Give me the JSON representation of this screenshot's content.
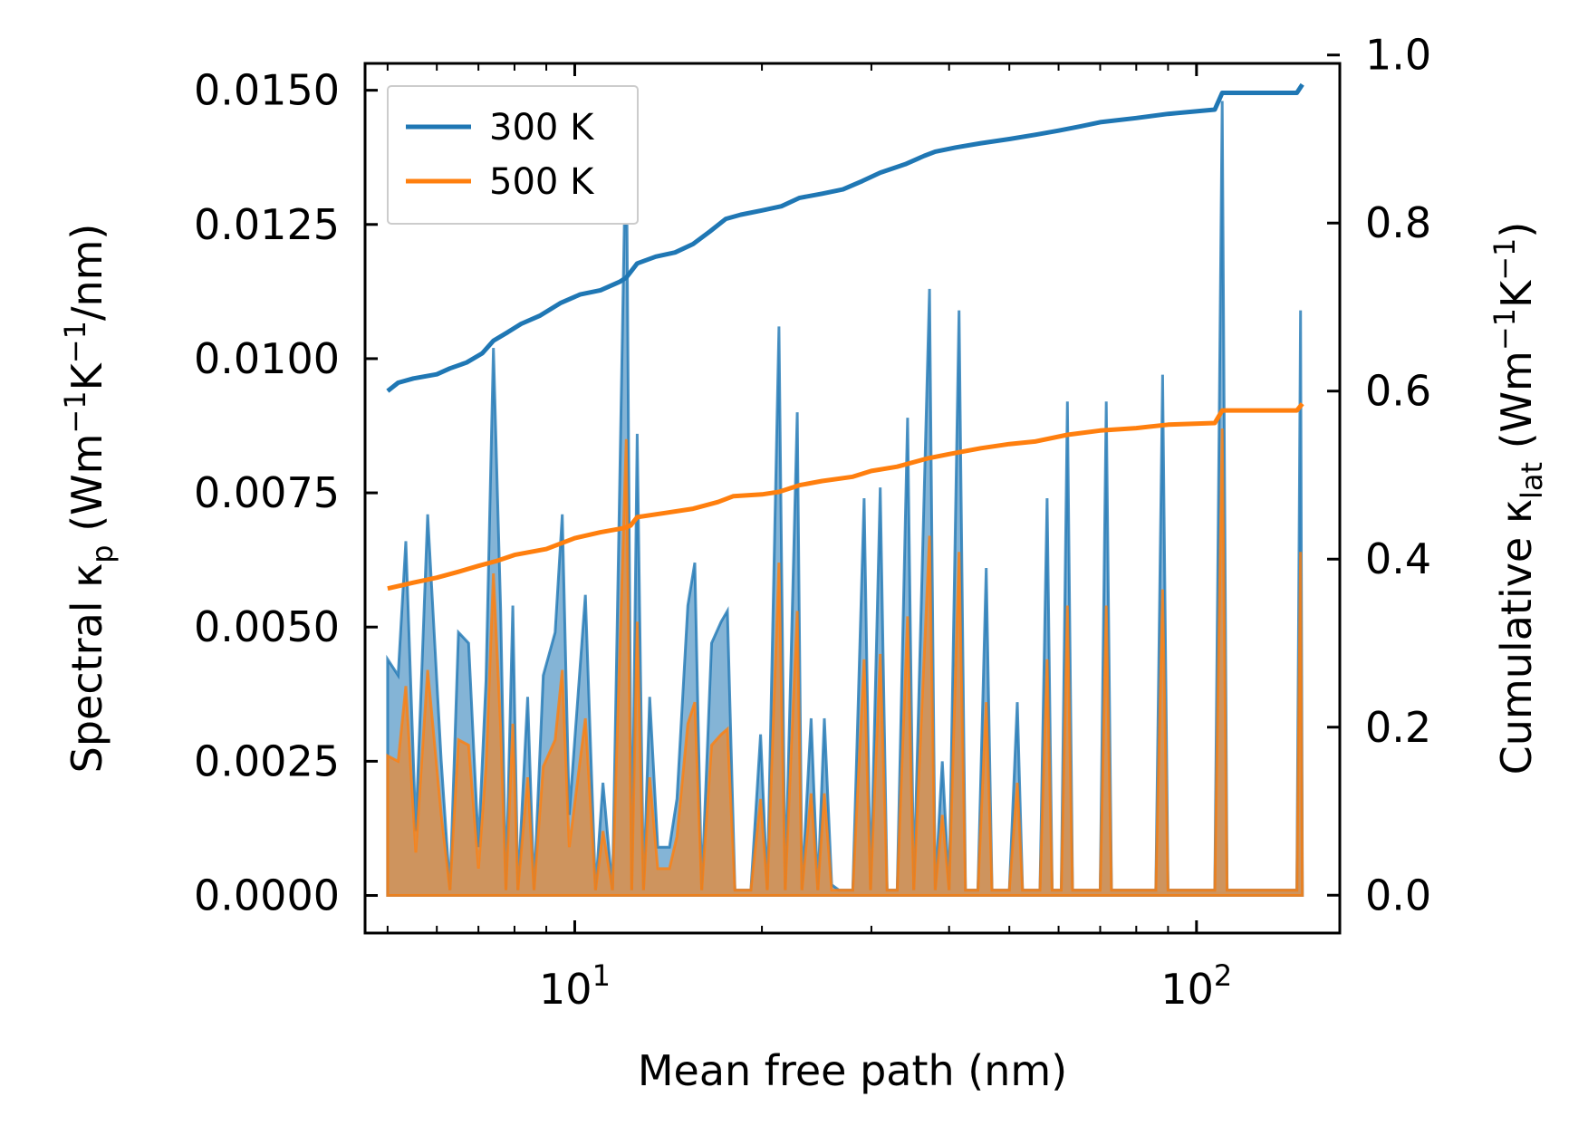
{
  "chart_data": {
    "type": "area",
    "xscale": "log",
    "xlabel": "Mean free path (nm)",
    "ylabel_left": {
      "base": "Spectral κ",
      "sub": "p",
      "unit_open": " (Wm",
      "sup1": "−1",
      "mid": "K",
      "sup2": "−1",
      "unit_close": "/nm)"
    },
    "ylabel_right": {
      "base": "Cumulative κ",
      "sub": "lat",
      "unit_open": " (Wm",
      "sup1": "−1",
      "mid": "K",
      "sup2": "−1",
      "unit_close": ")"
    },
    "xlim": [
      4.6,
      170
    ],
    "ylim_left": [
      -0.0007,
      0.0155
    ],
    "ylim_right": [
      -0.045,
      0.99
    ],
    "x_ticks": [
      {
        "value": 10,
        "base": "10",
        "exp": "1"
      },
      {
        "value": 100,
        "base": "10",
        "exp": "2"
      }
    ],
    "y_ticks_left": [
      "0.0000",
      "0.0025",
      "0.0050",
      "0.0075",
      "0.0100",
      "0.0125",
      "0.0150"
    ],
    "y_ticks_left_values": [
      0,
      0.0025,
      0.005,
      0.0075,
      0.01,
      0.0125,
      0.015
    ],
    "y_ticks_right": [
      "0.0",
      "0.2",
      "0.4",
      "0.6",
      "0.8",
      "1.0"
    ],
    "y_ticks_right_values": [
      0,
      0.2,
      0.4,
      0.6,
      0.8,
      1.0
    ],
    "legend": {
      "position": "top-left",
      "entries": [
        "300 K",
        "500 K"
      ]
    },
    "series": [
      {
        "name": "300 K",
        "color": "#1f77b4",
        "spectral": [
          [
            5,
            0.0044
          ],
          [
            5.2,
            0.0041
          ],
          [
            5.35,
            0.0066
          ],
          [
            5.55,
            0.0012
          ],
          [
            5.8,
            0.0071
          ],
          [
            6.1,
            0.0025
          ],
          [
            6.3,
            0.0001
          ],
          [
            6.5,
            0.0049
          ],
          [
            6.75,
            0.0047
          ],
          [
            7.0,
            0.0009
          ],
          [
            7.2,
            0.004
          ],
          [
            7.4,
            0.0102
          ],
          [
            7.6,
            0.0053
          ],
          [
            7.75,
            0.0001
          ],
          [
            7.95,
            0.0054
          ],
          [
            8.1,
            0.0001
          ],
          [
            8.4,
            0.0037
          ],
          [
            8.6,
            0.0001
          ],
          [
            8.9,
            0.0041
          ],
          [
            9.3,
            0.0049
          ],
          [
            9.55,
            0.0071
          ],
          [
            9.8,
            0.0015
          ],
          [
            10.4,
            0.0056
          ],
          [
            10.8,
            0.0001
          ],
          [
            11.1,
            0.0021
          ],
          [
            11.5,
            0.0001
          ],
          [
            12.1,
            0.0145
          ],
          [
            12.35,
            0.0001
          ],
          [
            12.6,
            0.0086
          ],
          [
            12.9,
            0.0001
          ],
          [
            13.2,
            0.0037
          ],
          [
            13.6,
            0.0009
          ],
          [
            14.2,
            0.0009
          ],
          [
            14.6,
            0.0018
          ],
          [
            15.2,
            0.0054
          ],
          [
            15.6,
            0.0062
          ],
          [
            16.0,
            0.0001
          ],
          [
            16.6,
            0.0047
          ],
          [
            17.2,
            0.0051
          ],
          [
            17.6,
            0.0053
          ],
          [
            18.1,
            0.0001
          ],
          [
            19.2,
            0.0001
          ],
          [
            19.9,
            0.003
          ],
          [
            20.4,
            0.0001
          ],
          [
            21.3,
            0.0106
          ],
          [
            21.8,
            0.0001
          ],
          [
            22.8,
            0.009
          ],
          [
            23.2,
            0.0001
          ],
          [
            24.0,
            0.0033
          ],
          [
            24.6,
            0.0001
          ],
          [
            25.2,
            0.0033
          ],
          [
            25.9,
            0.0002
          ],
          [
            26.6,
            0.0001
          ],
          [
            28.0,
            0.0001
          ],
          [
            29.2,
            0.0074
          ],
          [
            29.9,
            0.0001
          ],
          [
            31.0,
            0.0076
          ],
          [
            31.8,
            0.0001
          ],
          [
            33.0,
            0.0001
          ],
          [
            34.3,
            0.0089
          ],
          [
            35.1,
            0.0001
          ],
          [
            37.2,
            0.0113
          ],
          [
            38.0,
            0.0001
          ],
          [
            39.0,
            0.0025
          ],
          [
            40.0,
            0.0001
          ],
          [
            41.5,
            0.0109
          ],
          [
            42.5,
            0.0001
          ],
          [
            44.5,
            0.0001
          ],
          [
            45.9,
            0.0061
          ],
          [
            46.9,
            0.0001
          ],
          [
            50.0,
            0.0001
          ],
          [
            51.5,
            0.0036
          ],
          [
            52.5,
            0.0001
          ],
          [
            56.0,
            0.0001
          ],
          [
            57.5,
            0.0074
          ],
          [
            58.6,
            0.0001
          ],
          [
            60.6,
            0.0001
          ],
          [
            62.0,
            0.0092
          ],
          [
            63.2,
            0.0001
          ],
          [
            70.0,
            0.0001
          ],
          [
            71.6,
            0.0092
          ],
          [
            73.0,
            0.0001
          ],
          [
            86.0,
            0.0001
          ],
          [
            88.2,
            0.0097
          ],
          [
            90.0,
            0.0001
          ],
          [
            107.0,
            0.0001
          ],
          [
            110.0,
            0.0148
          ],
          [
            112.0,
            0.0001
          ],
          [
            145.0,
            0.0001
          ],
          [
            147.0,
            0.0109
          ],
          [
            148.0,
            0.0001
          ]
        ],
        "cumulative": [
          [
            5,
            0.6
          ],
          [
            5.2,
            0.61
          ],
          [
            5.5,
            0.615
          ],
          [
            6,
            0.62
          ],
          [
            6.3,
            0.627
          ],
          [
            6.7,
            0.634
          ],
          [
            7.1,
            0.645
          ],
          [
            7.4,
            0.66
          ],
          [
            7.8,
            0.67
          ],
          [
            8.2,
            0.68
          ],
          [
            8.8,
            0.69
          ],
          [
            9.5,
            0.705
          ],
          [
            10.2,
            0.715
          ],
          [
            11.0,
            0.72
          ],
          [
            11.8,
            0.73
          ],
          [
            12.1,
            0.735
          ],
          [
            12.6,
            0.752
          ],
          [
            13.5,
            0.76
          ],
          [
            14.5,
            0.765
          ],
          [
            15.5,
            0.775
          ],
          [
            16.5,
            0.79
          ],
          [
            17.5,
            0.805
          ],
          [
            18.5,
            0.81
          ],
          [
            20.0,
            0.815
          ],
          [
            21.5,
            0.82
          ],
          [
            23.0,
            0.83
          ],
          [
            25.0,
            0.835
          ],
          [
            27.0,
            0.84
          ],
          [
            29.0,
            0.85
          ],
          [
            31.0,
            0.86
          ],
          [
            34.0,
            0.87
          ],
          [
            36.5,
            0.88
          ],
          [
            38.0,
            0.885
          ],
          [
            41.0,
            0.89
          ],
          [
            45.0,
            0.895
          ],
          [
            50.0,
            0.9
          ],
          [
            55.0,
            0.905
          ],
          [
            60.0,
            0.91
          ],
          [
            65.0,
            0.915
          ],
          [
            70.0,
            0.92
          ],
          [
            80.0,
            0.925
          ],
          [
            90.0,
            0.93
          ],
          [
            107.0,
            0.935
          ],
          [
            110.0,
            0.955
          ],
          [
            145.0,
            0.955
          ],
          [
            148.0,
            0.965
          ]
        ]
      },
      {
        "name": "500 K",
        "color": "#ff7f0e",
        "spectral": [
          [
            5,
            0.0026
          ],
          [
            5.2,
            0.0025
          ],
          [
            5.35,
            0.0039
          ],
          [
            5.55,
            0.0008
          ],
          [
            5.8,
            0.0042
          ],
          [
            6.1,
            0.0015
          ],
          [
            6.3,
            0.0001
          ],
          [
            6.5,
            0.0029
          ],
          [
            6.75,
            0.0028
          ],
          [
            7.0,
            0.0005
          ],
          [
            7.2,
            0.0024
          ],
          [
            7.4,
            0.006
          ],
          [
            7.6,
            0.0031
          ],
          [
            7.75,
            0.0001
          ],
          [
            7.95,
            0.0032
          ],
          [
            8.1,
            0.0001
          ],
          [
            8.4,
            0.0022
          ],
          [
            8.6,
            0.0001
          ],
          [
            8.9,
            0.0024
          ],
          [
            9.3,
            0.0029
          ],
          [
            9.55,
            0.0042
          ],
          [
            9.8,
            0.0009
          ],
          [
            10.4,
            0.0033
          ],
          [
            10.8,
            0.0001
          ],
          [
            11.1,
            0.0012
          ],
          [
            11.5,
            0.0001
          ],
          [
            12.1,
            0.0085
          ],
          [
            12.35,
            0.0001
          ],
          [
            12.6,
            0.0051
          ],
          [
            12.9,
            0.0001
          ],
          [
            13.2,
            0.0022
          ],
          [
            13.6,
            0.0005
          ],
          [
            14.2,
            0.0005
          ],
          [
            14.6,
            0.0011
          ],
          [
            15.2,
            0.0032
          ],
          [
            15.6,
            0.0036
          ],
          [
            16.0,
            0.0001
          ],
          [
            16.6,
            0.0028
          ],
          [
            17.2,
            0.003
          ],
          [
            17.6,
            0.0031
          ],
          [
            18.1,
            0.0001
          ],
          [
            19.2,
            0.0001
          ],
          [
            19.9,
            0.0018
          ],
          [
            20.4,
            0.0001
          ],
          [
            21.3,
            0.0062
          ],
          [
            21.8,
            0.0001
          ],
          [
            22.8,
            0.0053
          ],
          [
            23.2,
            0.0001
          ],
          [
            24.0,
            0.0019
          ],
          [
            24.6,
            0.0001
          ],
          [
            25.2,
            0.0019
          ],
          [
            25.9,
            0.0001
          ],
          [
            26.6,
            0.0001
          ],
          [
            28.0,
            0.0001
          ],
          [
            29.2,
            0.0044
          ],
          [
            29.9,
            0.0001
          ],
          [
            31.0,
            0.0045
          ],
          [
            31.8,
            0.0001
          ],
          [
            33.0,
            0.0001
          ],
          [
            34.3,
            0.0052
          ],
          [
            35.1,
            0.0001
          ],
          [
            37.2,
            0.0067
          ],
          [
            38.0,
            0.0001
          ],
          [
            39.0,
            0.0015
          ],
          [
            40.0,
            0.0001
          ],
          [
            41.5,
            0.0064
          ],
          [
            42.5,
            0.0001
          ],
          [
            44.5,
            0.0001
          ],
          [
            45.9,
            0.0036
          ],
          [
            46.9,
            0.0001
          ],
          [
            50.0,
            0.0001
          ],
          [
            51.5,
            0.0021
          ],
          [
            52.5,
            0.0001
          ],
          [
            56.0,
            0.0001
          ],
          [
            57.5,
            0.0044
          ],
          [
            58.6,
            0.0001
          ],
          [
            60.6,
            0.0001
          ],
          [
            62.0,
            0.0054
          ],
          [
            63.2,
            0.0001
          ],
          [
            70.0,
            0.0001
          ],
          [
            71.6,
            0.0054
          ],
          [
            73.0,
            0.0001
          ],
          [
            86.0,
            0.0001
          ],
          [
            88.2,
            0.0057
          ],
          [
            90.0,
            0.0001
          ],
          [
            107.0,
            0.0001
          ],
          [
            110.0,
            0.0087
          ],
          [
            112.0,
            0.0001
          ],
          [
            145.0,
            0.0001
          ],
          [
            147.0,
            0.0064
          ],
          [
            148.0,
            0.0001
          ]
        ],
        "cumulative": [
          [
            5,
            0.365
          ],
          [
            5.5,
            0.372
          ],
          [
            6,
            0.378
          ],
          [
            6.5,
            0.385
          ],
          [
            7,
            0.392
          ],
          [
            7.5,
            0.398
          ],
          [
            8,
            0.405
          ],
          [
            9,
            0.412
          ],
          [
            10,
            0.425
          ],
          [
            11,
            0.432
          ],
          [
            12,
            0.437
          ],
          [
            12.3,
            0.44
          ],
          [
            12.6,
            0.45
          ],
          [
            14,
            0.455
          ],
          [
            15.5,
            0.46
          ],
          [
            17,
            0.468
          ],
          [
            18,
            0.475
          ],
          [
            20,
            0.477
          ],
          [
            21.3,
            0.48
          ],
          [
            23,
            0.488
          ],
          [
            25,
            0.493
          ],
          [
            28,
            0.498
          ],
          [
            30,
            0.505
          ],
          [
            33,
            0.51
          ],
          [
            37,
            0.52
          ],
          [
            40,
            0.525
          ],
          [
            45,
            0.532
          ],
          [
            50,
            0.537
          ],
          [
            55,
            0.54
          ],
          [
            62,
            0.548
          ],
          [
            70,
            0.553
          ],
          [
            80,
            0.556
          ],
          [
            90,
            0.56
          ],
          [
            107,
            0.562
          ],
          [
            110,
            0.577
          ],
          [
            145,
            0.577
          ],
          [
            148,
            0.585
          ]
        ]
      }
    ]
  }
}
